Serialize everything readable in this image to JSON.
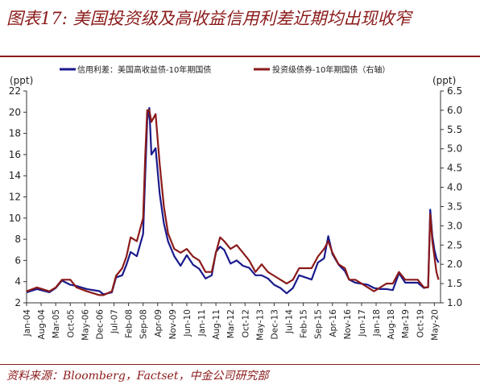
{
  "title": "图表17: 美国投资级及高收益信用利差近期均出现收窄",
  "source": "资料来源：Bloomberg，Factset，中金公司研究部",
  "colors": {
    "brand": "#8b1a1a",
    "series_hy": "#1a1a8c",
    "series_ig": "#8b1a1a"
  },
  "chart_data": {
    "type": "line",
    "ylabel_left": "(ppt)",
    "ylabel_right": "(ppt)",
    "y_left": {
      "min": 2,
      "max": 22,
      "ticks": [
        2,
        4,
        6,
        8,
        10,
        12,
        14,
        16,
        18,
        20,
        22
      ]
    },
    "y_right": {
      "min": 1.0,
      "max": 6.5,
      "ticks": [
        1.0,
        1.5,
        2.0,
        2.5,
        3.0,
        3.5,
        4.0,
        4.5,
        5.0,
        5.5,
        6.0,
        6.5
      ]
    },
    "x_ticks": [
      "Jan-04",
      "Aug-04",
      "Mar-05",
      "Oct-05",
      "May-06",
      "Dec-06",
      "Jul-07",
      "Feb-08",
      "Sep-08",
      "Apr-09",
      "Nov-09",
      "Jun-10",
      "Jan-11",
      "Aug-11",
      "Mar-12",
      "Oct-12",
      "May-13",
      "Dec-13",
      "Jul-14",
      "Feb-15",
      "Sep-15",
      "Apr-16",
      "Nov-16",
      "Jun-17",
      "Jan-18",
      "Aug-18",
      "Mar-19",
      "Oct-19",
      "May-20"
    ],
    "series": [
      {
        "name": "信用利差：美国高收益债-10年期国债",
        "axis": "left",
        "x": [
          "2004-01",
          "2004-06",
          "2004-12",
          "2005-03",
          "2005-06",
          "2005-10",
          "2006-01",
          "2006-06",
          "2006-12",
          "2007-02",
          "2007-06",
          "2007-08",
          "2007-11",
          "2008-01",
          "2008-03",
          "2008-06",
          "2008-09",
          "2008-10",
          "2008-11",
          "2008-12",
          "2009-01",
          "2009-03",
          "2009-05",
          "2009-07",
          "2009-09",
          "2009-12",
          "2010-03",
          "2010-06",
          "2010-09",
          "2010-12",
          "2011-03",
          "2011-06",
          "2011-08",
          "2011-10",
          "2011-12",
          "2012-03",
          "2012-06",
          "2012-09",
          "2012-12",
          "2013-03",
          "2013-06",
          "2013-09",
          "2013-12",
          "2014-03",
          "2014-06",
          "2014-09",
          "2014-12",
          "2015-03",
          "2015-06",
          "2015-09",
          "2015-12",
          "2016-02",
          "2016-04",
          "2016-07",
          "2016-10",
          "2016-12",
          "2017-03",
          "2017-06",
          "2017-09",
          "2017-12",
          "2018-03",
          "2018-06",
          "2018-09",
          "2018-12",
          "2019-03",
          "2019-06",
          "2019-09",
          "2019-12",
          "2020-02",
          "2020-03",
          "2020-04",
          "2020-05",
          "2020-06",
          "2020-07"
        ],
        "y": [
          3.0,
          3.3,
          3.0,
          3.4,
          4.1,
          3.7,
          3.6,
          3.3,
          3.1,
          2.8,
          3.0,
          4.4,
          4.6,
          5.6,
          6.8,
          6.4,
          8.5,
          14.0,
          19.2,
          20.4,
          16.0,
          16.6,
          12.3,
          9.5,
          7.8,
          6.4,
          5.5,
          6.5,
          5.6,
          5.2,
          4.3,
          4.6,
          6.8,
          7.3,
          7.0,
          5.7,
          6.0,
          5.5,
          5.3,
          4.6,
          4.6,
          4.3,
          3.7,
          3.4,
          2.9,
          3.4,
          4.6,
          4.4,
          4.2,
          5.8,
          6.2,
          8.3,
          6.6,
          5.6,
          5.0,
          4.2,
          3.9,
          3.8,
          3.7,
          3.4,
          3.3,
          3.3,
          3.2,
          4.8,
          3.9,
          3.9,
          3.9,
          3.4,
          3.5,
          10.8,
          8.3,
          7.0,
          6.2,
          5.8
        ]
      },
      {
        "name": "投资级债券-10年期国债（右轴）",
        "axis": "right",
        "x": [
          "2004-01",
          "2004-06",
          "2004-12",
          "2005-03",
          "2005-06",
          "2005-10",
          "2006-01",
          "2006-06",
          "2006-12",
          "2007-02",
          "2007-06",
          "2007-08",
          "2007-11",
          "2008-01",
          "2008-03",
          "2008-06",
          "2008-09",
          "2008-10",
          "2008-11",
          "2008-12",
          "2009-01",
          "2009-03",
          "2009-05",
          "2009-07",
          "2009-09",
          "2009-12",
          "2010-03",
          "2010-06",
          "2010-09",
          "2010-12",
          "2011-03",
          "2011-06",
          "2011-08",
          "2011-10",
          "2011-12",
          "2012-03",
          "2012-06",
          "2012-09",
          "2012-12",
          "2013-03",
          "2013-06",
          "2013-09",
          "2013-12",
          "2014-03",
          "2014-06",
          "2014-09",
          "2014-12",
          "2015-03",
          "2015-06",
          "2015-09",
          "2015-12",
          "2016-02",
          "2016-04",
          "2016-07",
          "2016-10",
          "2016-12",
          "2017-03",
          "2017-06",
          "2017-09",
          "2017-12",
          "2018-03",
          "2018-06",
          "2018-09",
          "2018-12",
          "2019-03",
          "2019-06",
          "2019-09",
          "2019-12",
          "2020-02",
          "2020-03",
          "2020-04",
          "2020-05",
          "2020-06",
          "2020-07"
        ],
        "y": [
          1.3,
          1.4,
          1.3,
          1.4,
          1.6,
          1.6,
          1.4,
          1.3,
          1.2,
          1.2,
          1.3,
          1.7,
          1.9,
          2.2,
          2.7,
          2.6,
          3.2,
          4.8,
          6.0,
          6.0,
          5.7,
          5.9,
          4.6,
          3.5,
          2.8,
          2.4,
          2.3,
          2.4,
          2.2,
          2.1,
          1.8,
          1.8,
          2.3,
          2.7,
          2.6,
          2.4,
          2.5,
          2.3,
          2.1,
          1.8,
          2.0,
          1.8,
          1.7,
          1.6,
          1.5,
          1.6,
          1.9,
          1.9,
          1.9,
          2.2,
          2.4,
          2.6,
          2.3,
          2.0,
          1.9,
          1.6,
          1.6,
          1.5,
          1.4,
          1.3,
          1.4,
          1.5,
          1.5,
          1.8,
          1.6,
          1.6,
          1.6,
          1.4,
          1.4,
          3.3,
          2.6,
          2.2,
          1.8,
          1.6
        ]
      }
    ]
  }
}
